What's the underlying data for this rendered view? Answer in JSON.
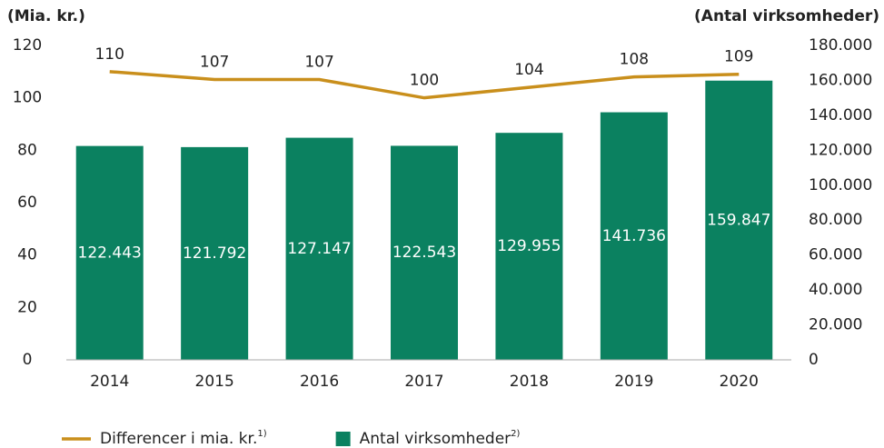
{
  "chart_data": {
    "type": "bar_line",
    "y_axis_label": "(Mia. kr.)",
    "y2_axis_label": "(Antal virksomheder)",
    "categories": [
      "2014",
      "2015",
      "2016",
      "2017",
      "2018",
      "2019",
      "2020"
    ],
    "series": [
      {
        "name": "Differencer i mia. kr.",
        "footnote": "1)",
        "type": "line",
        "color": "#c98f1c",
        "axis": "y",
        "values": [
          110,
          107,
          107,
          100,
          104,
          108,
          109
        ]
      },
      {
        "name": "Antal virksomheder",
        "footnote": "2)",
        "type": "bar",
        "color": "#0b8160",
        "axis": "y2",
        "values": [
          122443,
          121792,
          127147,
          122543,
          129955,
          141736,
          159847
        ],
        "value_labels": [
          "122.443",
          "121.792",
          "127.147",
          "122.543",
          "129.955",
          "141.736",
          "159.847"
        ]
      }
    ],
    "ylim": [
      0,
      120
    ],
    "yticks": [
      0,
      20,
      40,
      60,
      80,
      100,
      120
    ],
    "y2lim": [
      0,
      180000
    ],
    "y2ticks": [
      0,
      {
        "value": 20000,
        "label": "20.000"
      },
      {
        "value": 40000,
        "label": "40.000"
      },
      {
        "value": 60000,
        "label": "60.000"
      },
      {
        "value": 80000,
        "label": "80.000"
      },
      {
        "value": 100000,
        "label": "100.000"
      },
      {
        "value": 120000,
        "label": "120.000"
      },
      {
        "value": 140000,
        "label": "140.000"
      },
      {
        "value": 160000,
        "label": "160.000"
      },
      {
        "value": 180000,
        "label": "180.000"
      }
    ]
  }
}
